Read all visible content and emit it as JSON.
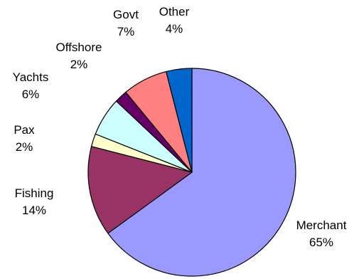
{
  "chart_data": {
    "type": "pie",
    "slices": [
      {
        "label": "Merchant",
        "value": 65,
        "value_label": "65%",
        "color": "#9999ff"
      },
      {
        "label": "Fishing",
        "value": 14,
        "value_label": "14%",
        "color": "#993366"
      },
      {
        "label": "Pax",
        "value": 2,
        "value_label": "2%",
        "color": "#ffffcc"
      },
      {
        "label": "Yachts",
        "value": 6,
        "value_label": "6%",
        "color": "#ccffff"
      },
      {
        "label": "Offshore",
        "value": 2,
        "value_label": "2%",
        "color": "#660066"
      },
      {
        "label": "Govt",
        "value": 7,
        "value_label": "7%",
        "color": "#ff8080"
      },
      {
        "label": "Other",
        "value": 4,
        "value_label": "4%",
        "color": "#0066cc"
      }
    ],
    "start_angle_deg": 0,
    "direction": "clockwise",
    "legend": "none"
  }
}
